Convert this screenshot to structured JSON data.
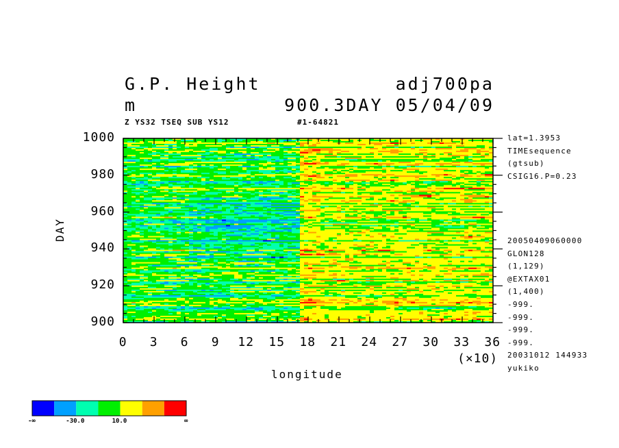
{
  "header": {
    "title_left": "G.P. Height",
    "title_right": "adj700pa",
    "units": "m",
    "time_info": "900.3DAY 05/04/09",
    "sub_left": "Z YS32 TSEQ SUB YS12",
    "sub_right": "#1-64821"
  },
  "side_info": {
    "top": [
      "lat=1.3953",
      "TIMEsequence",
      "(gtsub)",
      "CSIG16.P=0.23"
    ],
    "bottom": [
      "20050409060000",
      "GLON128",
      "(1,129)",
      "@EXTAX01",
      "(1,400)",
      "-999.",
      "-999.",
      "-999.",
      "-999.",
      "20031012 144933",
      "yukiko"
    ]
  },
  "chart_data": {
    "type": "heatmap",
    "xlabel": "longitude",
    "ylabel": "DAY",
    "x_scale_label": "(×10)",
    "xlim": [
      0,
      36
    ],
    "ylim": [
      900,
      1000
    ],
    "x_ticks": [
      "0",
      "3",
      "6",
      "9",
      "12",
      "15",
      "18",
      "21",
      "24",
      "27",
      "30",
      "33",
      "36"
    ],
    "y_ticks": [
      "900",
      "920",
      "940",
      "960",
      "980",
      "1000"
    ],
    "colorbar": {
      "colors": [
        "#0000ff",
        "#00a0ff",
        "#00ffb0",
        "#00f000",
        "#ffff00",
        "#ffa000",
        "#ff0000"
      ],
      "labels": [
        "-∞",
        "-30.0",
        "10.0",
        "∞"
      ]
    }
  }
}
